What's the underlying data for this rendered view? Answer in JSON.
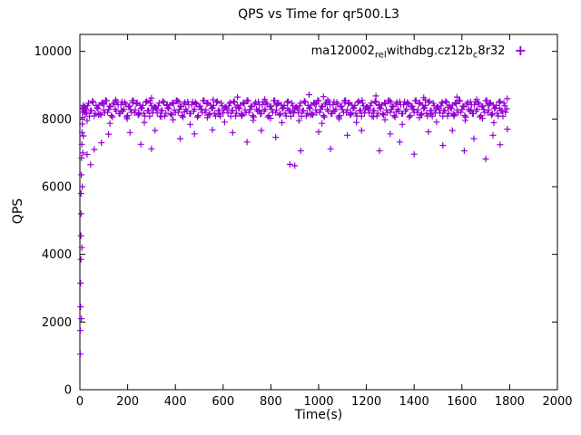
{
  "chart_data": {
    "type": "scatter",
    "title": "QPS vs Time for qr500.L3",
    "xlabel": "Time(s)",
    "ylabel": "QPS",
    "xlim": [
      0,
      2000
    ],
    "ylim": [
      0,
      10500
    ],
    "xticks": [
      0,
      200,
      400,
      600,
      800,
      1000,
      1200,
      1400,
      1600,
      1800,
      2000
    ],
    "yticks": [
      0,
      2000,
      4000,
      6000,
      8000,
      10000
    ],
    "grid": false,
    "legend_position": "top-right-inside",
    "marker_color": "#9400D3",
    "series": [
      {
        "name": "ma120002_rel_withdbg.cz12b_c8r32",
        "legend_parts": [
          {
            "text": "ma120002",
            "sub": false
          },
          {
            "text": "rel",
            "sub": true
          },
          {
            "text": "withdbg.cz12b",
            "sub": false
          },
          {
            "text": "c",
            "sub": true
          },
          {
            "text": "8r32",
            "sub": false
          }
        ],
        "marker": "plus",
        "color": "#9400D3",
        "points_groups": {
          "startup_ramp": [
            [
              2,
              1050
            ],
            [
              2,
              1750
            ],
            [
              3,
              2450
            ],
            [
              3,
              3150
            ],
            [
              4,
              3850
            ],
            [
              4,
              4550
            ],
            [
              5,
              5200
            ],
            [
              5,
              5800
            ],
            [
              6,
              6350
            ],
            [
              7,
              6850
            ],
            [
              8,
              7250
            ],
            [
              9,
              7600
            ],
            [
              10,
              7850
            ],
            [
              11,
              8050
            ],
            [
              12,
              8200
            ],
            [
              13,
              8320
            ],
            [
              14,
              8400
            ],
            [
              16,
              8280
            ],
            [
              18,
              8360
            ],
            [
              20,
              8240
            ],
            [
              6,
              2100
            ],
            [
              8,
              4200
            ],
            [
              10,
              6000
            ],
            [
              12,
              7000
            ],
            [
              15,
              7500
            ],
            [
              22,
              8150
            ],
            [
              25,
              8300
            ],
            [
              30,
              6950
            ],
            [
              45,
              6650
            ],
            [
              60,
              7100
            ],
            [
              90,
              7300
            ],
            [
              120,
              7550
            ]
          ],
          "low_outliers": [
            [
              210,
              7600
            ],
            [
              255,
              7250
            ],
            [
              300,
              7120
            ],
            [
              315,
              7660
            ],
            [
              420,
              7420
            ],
            [
              480,
              7560
            ],
            [
              555,
              7680
            ],
            [
              640,
              7600
            ],
            [
              700,
              7320
            ],
            [
              760,
              7660
            ],
            [
              820,
              7460
            ],
            [
              880,
              6660
            ],
            [
              900,
              6620
            ],
            [
              925,
              7060
            ],
            [
              1000,
              7620
            ],
            [
              1050,
              7120
            ],
            [
              1120,
              7520
            ],
            [
              1180,
              7660
            ],
            [
              1255,
              7060
            ],
            [
              1300,
              7560
            ],
            [
              1340,
              7320
            ],
            [
              1400,
              6960
            ],
            [
              1460,
              7620
            ],
            [
              1520,
              7220
            ],
            [
              1560,
              7660
            ],
            [
              1610,
              7060
            ],
            [
              1650,
              7420
            ],
            [
              1700,
              6820
            ],
            [
              1730,
              7520
            ],
            [
              1760,
              7240
            ],
            [
              1790,
              7700
            ]
          ],
          "high_outliers": [
            [
              300,
              8620
            ],
            [
              660,
              8650
            ],
            [
              960,
              8720
            ],
            [
              1240,
              8680
            ],
            [
              1580,
              8650
            ],
            [
              1790,
              8600
            ],
            [
              1020,
              8660
            ],
            [
              1440,
              8630
            ]
          ]
        },
        "bands": [
          {
            "x_start": 20,
            "x_step": 8,
            "n": 222,
            "y_cycle": [
              8350,
              8180,
              8470,
              8240,
              8520,
              8090,
              8400,
              8310,
              8150,
              8480,
              8270,
              8550,
              8200,
              8380,
              8100,
              8440,
              8290,
              8510,
              8160,
              8420,
              8230,
              8490,
              8060,
              8360,
              8280,
              8540,
              8190,
              8450,
              8120,
              8410,
              8330,
              8170,
              8500,
              8250,
              8080,
              8390,
              8300
            ]
          },
          {
            "x_start": 24,
            "x_step": 8,
            "n": 220,
            "y_cycle": [
              8300,
              8390,
              8080,
              8250,
              8500,
              8170,
              8330,
              8410,
              8120,
              8450,
              8190,
              8540,
              8280,
              8360,
              8060,
              8490,
              8230,
              8420,
              8160,
              8510,
              8290,
              8440,
              8100,
              8380,
              8200,
              8550,
              8270,
              8480,
              8150,
              8310,
              8400,
              8090,
              8520,
              8240,
              8470,
              8180,
              8350
            ]
          },
          {
            "x_start": 30,
            "x_step": 24,
            "n": 74,
            "y_cycle": [
              7950,
              8520,
              8130,
              8440,
              7870,
              8560,
              8250,
              8010,
              8480,
              8180,
              7900,
              8550,
              8320,
              8070,
              8430,
              7980,
              8510,
              8210,
              7840,
              8460,
              8290,
              8040,
              8570,
              8140,
              7910,
              8490,
              8350,
              8090,
              8530,
              7960,
              8270,
              8580,
              8020,
              8410,
              7890,
              8310,
              8200
            ]
          }
        ]
      }
    ]
  }
}
